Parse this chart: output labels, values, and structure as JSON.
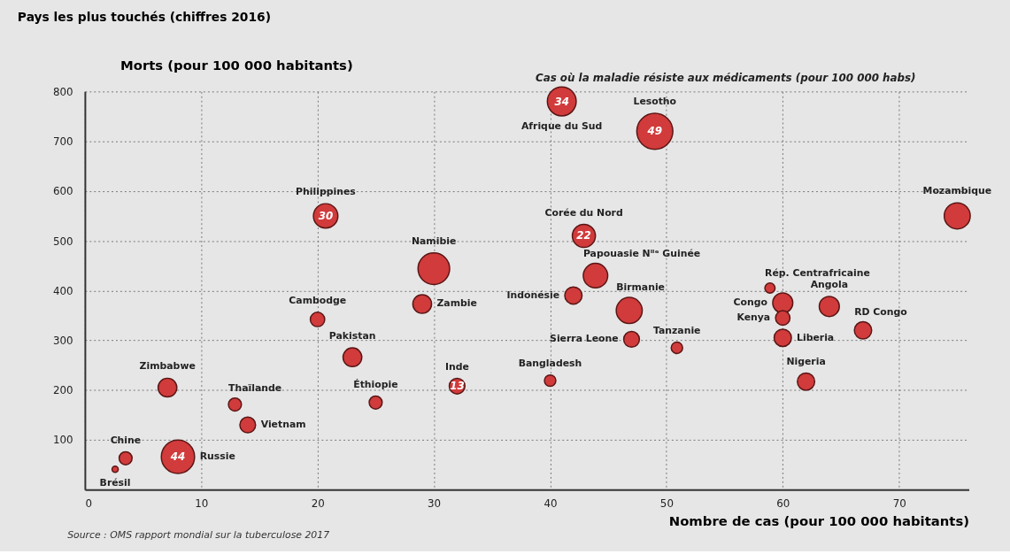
{
  "chart_data": {
    "type": "bubble",
    "title": "Pays les plus touchés (chiffres 2016)",
    "xlabel": "Nombre de cas (pour 100 000 habitants)",
    "ylabel": "Morts (pour 100 000 habitants)",
    "x": [
      41,
      49,
      75,
      20.7,
      42.9,
      30,
      43.9,
      58.9,
      42,
      29,
      60,
      64,
      46.8,
      60,
      20,
      66.9,
      47,
      60,
      50.9,
      23,
      40,
      62,
      32,
      7.1,
      25,
      12.9,
      14,
      3.5,
      8,
      2.6
    ],
    "series": [
      {
        "color": "#d13b3b",
        "values": [
          780,
          720,
          550,
          550,
          510,
          444,
          430,
          405,
          390,
          373,
          375,
          368,
          360,
          345,
          342,
          320,
          302,
          305,
          285,
          266,
          219,
          217,
          208,
          205,
          175,
          171,
          130,
          63,
          66,
          41
        ],
        "sizes": [
          0.64,
          1,
          0.52,
          0.46,
          0.41,
          0.77,
          0.46,
          0.08,
          0.23,
          0.27,
          0.31,
          0.31,
          0.52,
          0.16,
          0.16,
          0.23,
          0.19,
          0.23,
          0.1,
          0.27,
          0.1,
          0.23,
          0.19,
          0.27,
          0.13,
          0.13,
          0.19,
          0.13,
          0.85,
          0.03
        ]
      }
    ],
    "xlim": [
      0,
      76
    ],
    "xticks": [
      0,
      10,
      20,
      30,
      40,
      50,
      60,
      70
    ],
    "ylim": [
      0,
      800
    ],
    "yticks": [
      100,
      200,
      300,
      400,
      500,
      600,
      700,
      800
    ],
    "grid": true,
    "annotations": [
      {
        "text": "Afrique du Sud",
        "x": 41,
        "y": 780
      },
      {
        "text": "Lesotho",
        "x": 49,
        "y": 720
      },
      {
        "text": "Mozambique",
        "x": 75,
        "y": 550
      },
      {
        "text": "Philippines",
        "x": 20.7,
        "y": 550
      },
      {
        "text": "Corée du Nord",
        "x": 42.9,
        "y": 510
      },
      {
        "text": "Namibie",
        "x": 30,
        "y": 444
      },
      {
        "text": "Papouasie Nˡˡᵉ Guinée",
        "x": 43.9,
        "y": 430
      },
      {
        "text": "Rép. Centrafricaine",
        "x": 58.9,
        "y": 405
      },
      {
        "text": "Indonésie",
        "x": 42,
        "y": 390
      },
      {
        "text": "Zambie",
        "x": 29,
        "y": 373
      },
      {
        "text": "Congo",
        "x": 60,
        "y": 375
      },
      {
        "text": "Angola",
        "x": 64,
        "y": 368
      },
      {
        "text": "Birmanie",
        "x": 46.8,
        "y": 360
      },
      {
        "text": "Kenya",
        "x": 60,
        "y": 345
      },
      {
        "text": "Cambodge",
        "x": 20,
        "y": 342
      },
      {
        "text": "RD Congo",
        "x": 66.9,
        "y": 320
      },
      {
        "text": "Sierra Leone",
        "x": 47,
        "y": 302
      },
      {
        "text": "Liberia",
        "x": 60,
        "y": 305
      },
      {
        "text": "Tanzanie",
        "x": 50.9,
        "y": 285
      },
      {
        "text": "Pakistan",
        "x": 23,
        "y": 266
      },
      {
        "text": "Bangladesh",
        "x": 40,
        "y": 219
      },
      {
        "text": "Nigeria",
        "x": 62,
        "y": 217
      },
      {
        "text": "Inde",
        "x": 32,
        "y": 208
      },
      {
        "text": "Zimbabwe",
        "x": 7.1,
        "y": 205
      },
      {
        "text": "Éthiopie",
        "x": 25,
        "y": 175
      },
      {
        "text": "Thaïlande",
        "x": 12.9,
        "y": 171
      },
      {
        "text": "Vietnam",
        "x": 14,
        "y": 130
      },
      {
        "text": "Chine",
        "x": 3.5,
        "y": 63
      },
      {
        "text": "Russie",
        "x": 8,
        "y": 66
      },
      {
        "text": "Brésil",
        "x": 2.6,
        "y": 41
      },
      {
        "text": "34",
        "x": 41,
        "y": 780
      },
      {
        "text": "49",
        "x": 49,
        "y": 720
      },
      {
        "text": "30",
        "x": 20.7,
        "y": 550
      },
      {
        "text": "22",
        "x": 42.9,
        "y": 510
      },
      {
        "text": "13",
        "x": 32,
        "y": 208
      },
      {
        "text": "44",
        "x": 8,
        "y": 66
      },
      {
        "text": "Cas où la maladie résiste aux médicaments (pour 100 000 habs)",
        "x": 41,
        "y": 780
      },
      "Source : OMS rapport mondial sur la tuberculose 2017"
    ]
  }
}
